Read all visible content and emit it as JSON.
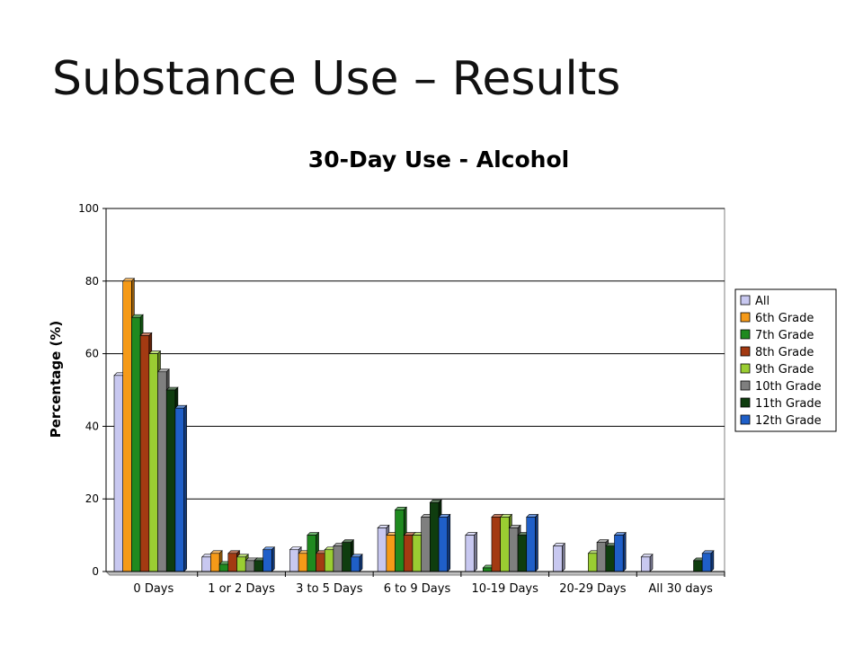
{
  "slide": {
    "title": "Substance Use – Results"
  },
  "chart_data": {
    "type": "bar",
    "title": "30-Day Use - Alcohol",
    "xlabel": "",
    "ylabel": "Percentage (%)",
    "ylim": [
      0,
      100
    ],
    "yticks": [
      0,
      20,
      40,
      60,
      80,
      100
    ],
    "grid": true,
    "legend_position": "right",
    "categories": [
      "0 Days",
      "1 or 2 Days",
      "3 to 5 Days",
      "6 to 9 Days",
      "10-19 Days",
      "20-29 Days",
      "All 30 days"
    ],
    "series": [
      {
        "name": "All",
        "color": "#c8c8f0",
        "values": [
          54,
          4,
          6,
          12,
          10,
          7,
          4
        ]
      },
      {
        "name": "6th Grade",
        "color": "#f59a18",
        "values": [
          80,
          5,
          5,
          10,
          0,
          0,
          0
        ]
      },
      {
        "name": "7th Grade",
        "color": "#1f8a1f",
        "values": [
          70,
          2,
          10,
          17,
          1,
          0,
          0
        ]
      },
      {
        "name": "8th Grade",
        "color": "#a33a12",
        "values": [
          65,
          5,
          5,
          10,
          15,
          0,
          0
        ]
      },
      {
        "name": "9th Grade",
        "color": "#9acd32",
        "values": [
          60,
          4,
          6,
          10,
          15,
          5,
          0
        ]
      },
      {
        "name": "10th Grade",
        "color": "#7f7f7f",
        "values": [
          55,
          3,
          7,
          15,
          12,
          8,
          0
        ]
      },
      {
        "name": "11th Grade",
        "color": "#0f3d0f",
        "values": [
          50,
          3,
          8,
          19,
          10,
          7,
          3
        ]
      },
      {
        "name": "12th Grade",
        "color": "#1f5fc8",
        "values": [
          45,
          6,
          4,
          15,
          15,
          10,
          5
        ]
      }
    ]
  }
}
